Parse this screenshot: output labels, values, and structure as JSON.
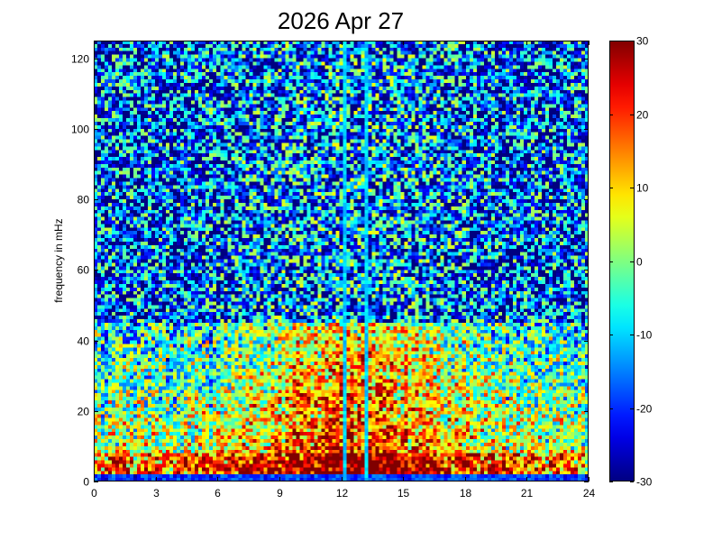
{
  "chart_data": {
    "type": "heatmap",
    "title": "2026 Apr 27",
    "ylabel": "frequency in mHz",
    "xlabel": "",
    "xlim": [
      0,
      24
    ],
    "ylim": [
      0,
      125
    ],
    "x_ticks": [
      0,
      3,
      6,
      9,
      12,
      15,
      18,
      21,
      24
    ],
    "y_ticks": [
      0,
      20,
      40,
      60,
      80,
      100,
      120
    ],
    "colorbar": {
      "colormap": "jet",
      "clim": [
        -30,
        30
      ],
      "ticks": [
        -30,
        -20,
        -10,
        0,
        10,
        20,
        30
      ]
    },
    "grid": false
  }
}
